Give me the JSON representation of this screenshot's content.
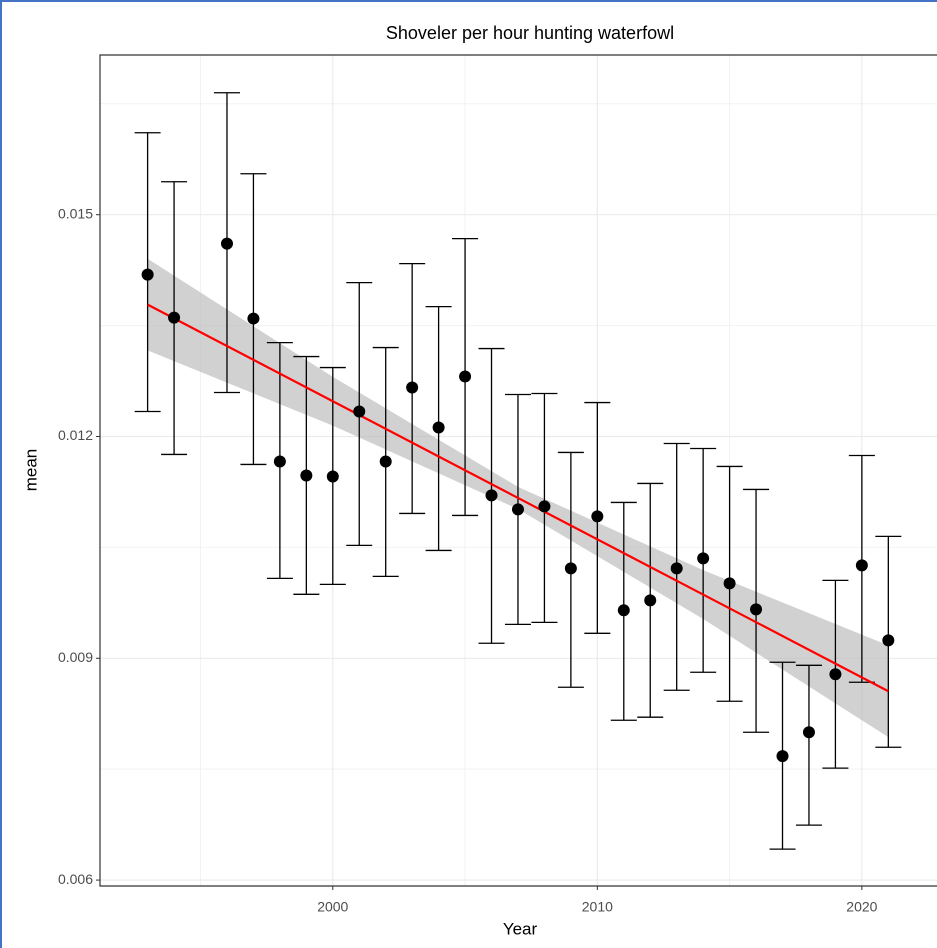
{
  "chart_data": {
    "type": "errorbar",
    "title": "Shoveler per hour hunting waterfowl",
    "x_label": "Year",
    "y_label": "mean",
    "xlim": [
      1991.2,
      2022.84
    ],
    "ylim": [
      0.00592,
      0.01716
    ],
    "xticks": [
      2000,
      2010,
      2020
    ],
    "yticks": [
      0.006,
      0.009,
      0.012,
      0.015
    ],
    "minor_xticks": [
      1995,
      2005,
      2015
    ],
    "minor_yticks": [
      0.0075,
      0.0105,
      0.0135,
      0.0165
    ],
    "grid": true,
    "series": [
      {
        "color": "#000000",
        "x": [
          1993,
          1994,
          1996,
          1997,
          1998,
          1999,
          2000,
          2001,
          2002,
          2003,
          2004,
          2005,
          2006,
          2007,
          2008,
          2009,
          2010,
          2011,
          2012,
          2013,
          2014,
          2015,
          2016,
          2017,
          2018,
          2019,
          2020,
          2021
        ],
        "values": [
          0.014189,
          0.013608,
          0.014608,
          0.013595,
          0.011662,
          0.011473,
          0.011459,
          0.012338,
          0.011662,
          0.012662,
          0.012122,
          0.012811,
          0.011203,
          0.011014,
          0.011054,
          0.010216,
          0.010919,
          0.009649,
          0.009784,
          0.010216,
          0.010351,
          0.010014,
          0.009662,
          0.007676,
          0.008,
          0.008784,
          0.010257,
          0.009243
        ],
        "lower": [
          0.012338,
          0.011757,
          0.012595,
          0.011622,
          0.010081,
          0.009865,
          0.01,
          0.010527,
          0.010108,
          0.010959,
          0.010459,
          0.010932,
          0.009203,
          0.009459,
          0.009486,
          0.008608,
          0.009338,
          0.008162,
          0.008203,
          0.008568,
          0.008811,
          0.008419,
          0.008,
          0.006419,
          0.006743,
          0.007514,
          0.008676,
          0.007797
        ],
        "upper": [
          0.016108,
          0.015446,
          0.016649,
          0.015554,
          0.01327,
          0.013081,
          0.012932,
          0.014081,
          0.013203,
          0.014338,
          0.013757,
          0.014676,
          0.013189,
          0.012568,
          0.012581,
          0.011784,
          0.012459,
          0.011108,
          0.011365,
          0.011905,
          0.011838,
          0.011595,
          0.011284,
          0.008946,
          0.008905,
          0.010054,
          0.011743,
          0.010649
        ]
      }
    ],
    "fit": {
      "color": "#ff0000",
      "band_color": "#bebebe",
      "x": [
        1993,
        2000,
        2007,
        2014,
        2021
      ],
      "values": [
        0.013784,
        0.012477,
        0.011169,
        0.009862,
        0.008554
      ],
      "lower": [
        0.013164,
        0.012147,
        0.011019,
        0.009532,
        0.007934
      ],
      "upper": [
        0.014404,
        0.012807,
        0.011319,
        0.010192,
        0.009174
      ]
    }
  }
}
